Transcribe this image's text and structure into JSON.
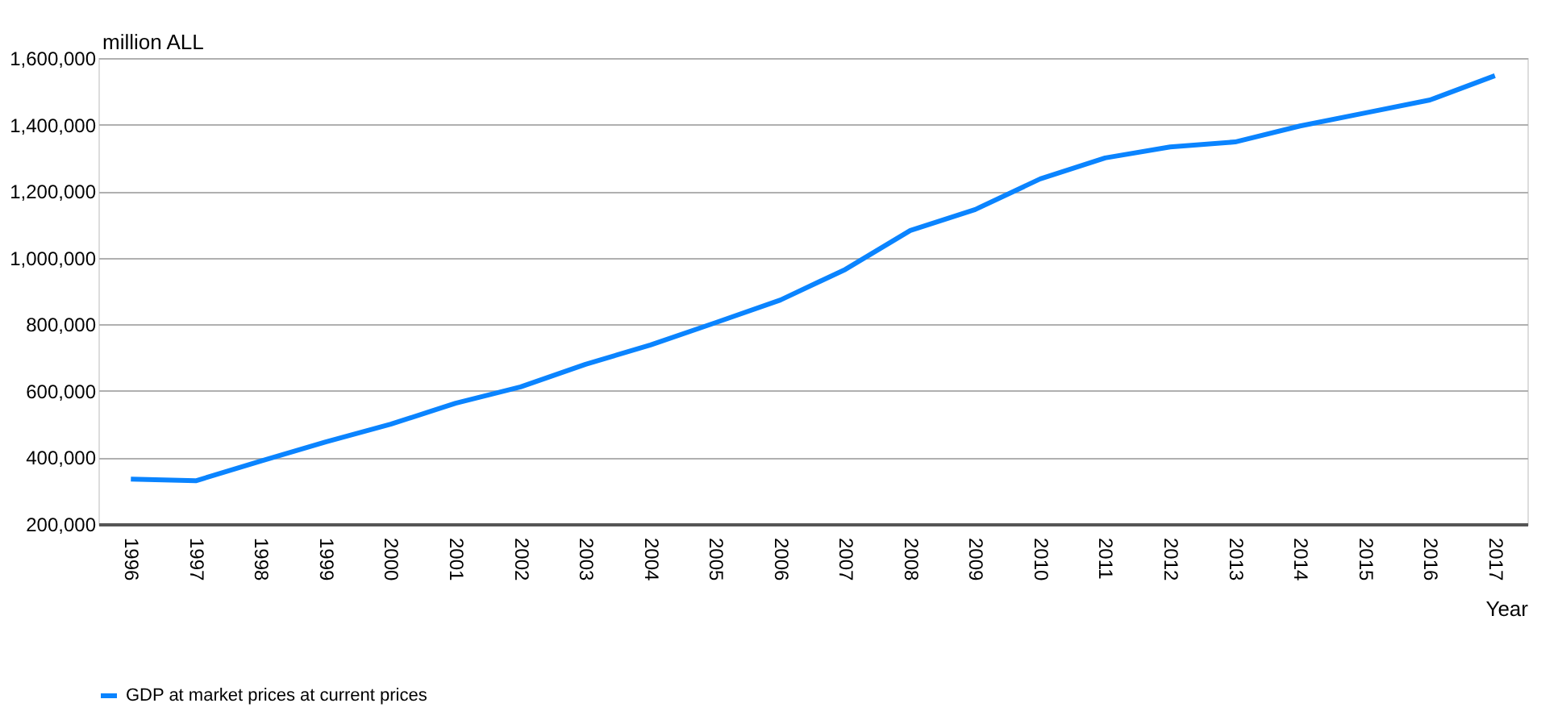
{
  "chart_data": {
    "type": "line",
    "xlabel": "Year",
    "ylabel": "million ALL",
    "categories": [
      "1996",
      "1997",
      "1998",
      "1999",
      "2000",
      "2001",
      "2002",
      "2003",
      "2004",
      "2005",
      "2006",
      "2007",
      "2008",
      "2009",
      "2010",
      "2011",
      "2012",
      "2013",
      "2014",
      "2015",
      "2016",
      "2017"
    ],
    "series": [
      {
        "name": "GDP at market prices  at current prices",
        "color": "#0a84ff",
        "values": [
          335000,
          330000,
          389000,
          447000,
          500000,
          563000,
          612000,
          680000,
          738000,
          805000,
          873000,
          965000,
          1082000,
          1145000,
          1237000,
          1300000,
          1333000,
          1348000,
          1396000,
          1435000,
          1474000,
          1547000
        ]
      }
    ],
    "ylim": [
      200000,
      1600000
    ],
    "yticks": [
      {
        "value": 200000,
        "label": "200,000"
      },
      {
        "value": 400000,
        "label": "400,000"
      },
      {
        "value": 600000,
        "label": "600,000"
      },
      {
        "value": 800000,
        "label": "800,000"
      },
      {
        "value": 1000000,
        "label": "1,000,000"
      },
      {
        "value": 1200000,
        "label": "1,200,000"
      },
      {
        "value": 1400000,
        "label": "1,400,000"
      },
      {
        "value": 1600000,
        "label": "1,600,000"
      }
    ],
    "grid": "y",
    "legend": "bottom",
    "marker": "none",
    "line_style": "solid"
  }
}
